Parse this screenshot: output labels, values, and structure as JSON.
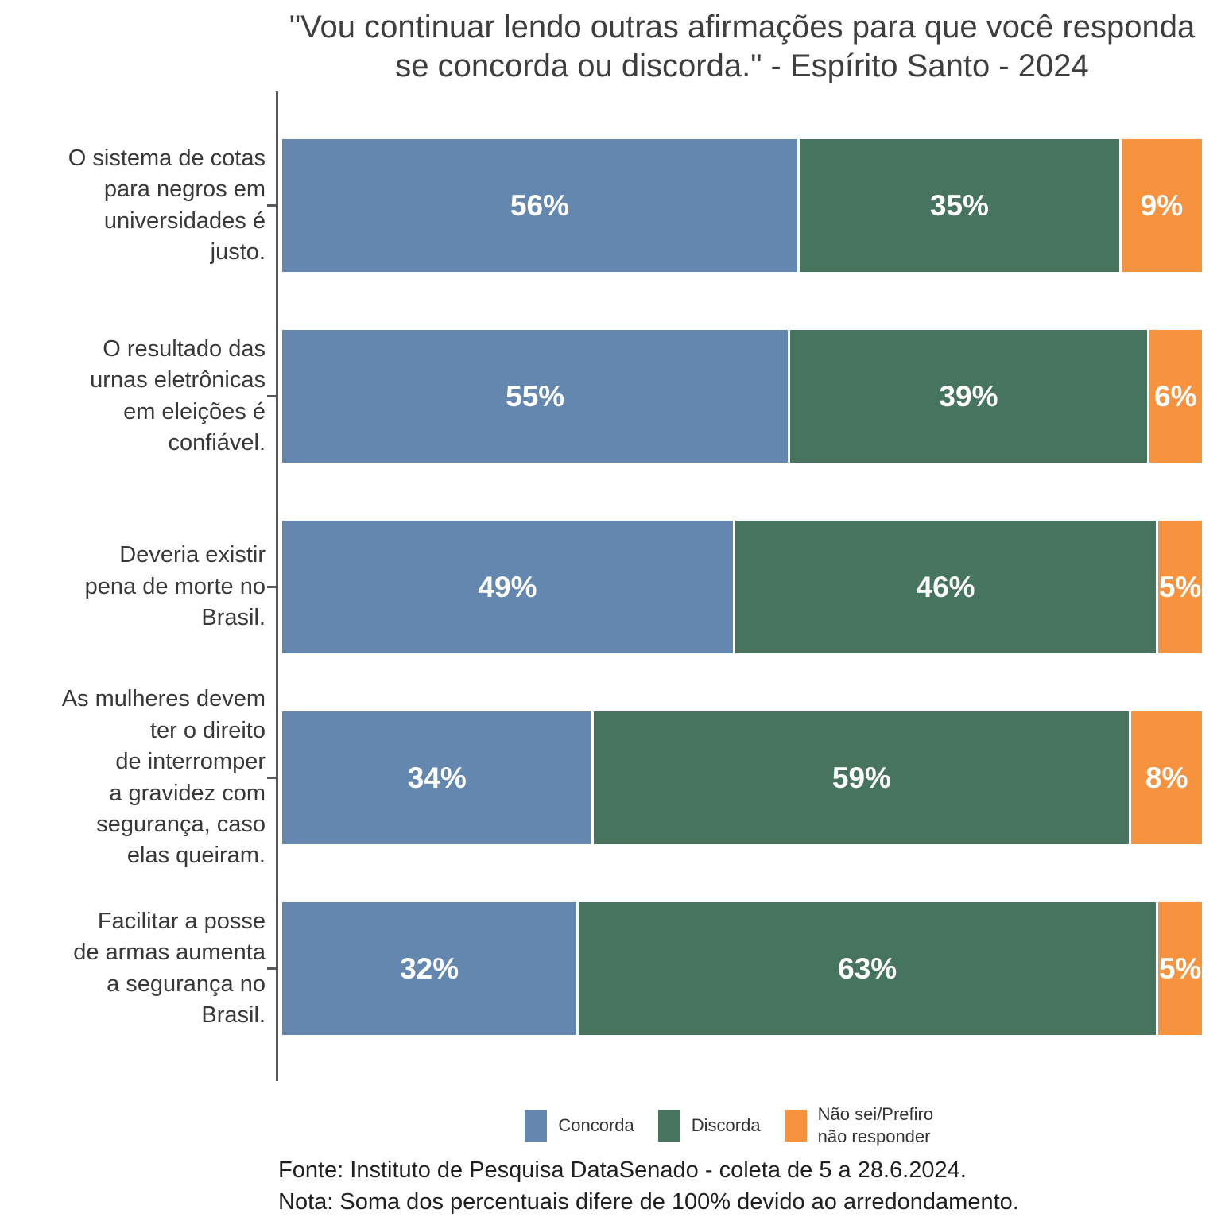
{
  "chart_data": {
    "type": "bar",
    "orientation": "horizontal",
    "stacked": true,
    "title": "\"Vou continuar lendo outras afirmações para que você responda se concorda ou discorda.\" - Espírito Santo - 2024",
    "categories": [
      "O sistema de cotas para negros em universidades é justo.",
      "O resultado das urnas eletrônicas em eleições é confiável.",
      "Deveria existir pena de morte no Brasil.",
      "As mulheres devem ter o direito de interromper a gravidez com segurança, caso elas queiram.",
      "Facilitar a posse de armas aumenta a segurança no Brasil."
    ],
    "category_label_lines": [
      [
        "O sistema de cotas",
        "para negros em",
        "universidades é",
        "justo."
      ],
      [
        "O resultado das",
        "urnas eletrônicas",
        "em eleições é",
        "confiável."
      ],
      [
        "Deveria existir",
        "pena de morte no",
        "Brasil."
      ],
      [
        "As mulheres devem",
        "ter o direito",
        "de interromper",
        "a gravidez com",
        "segurança, caso",
        "elas queiram."
      ],
      [
        "Facilitar a posse",
        "de armas aumenta",
        "a segurança no",
        "Brasil."
      ]
    ],
    "series": [
      {
        "name": "Concorda",
        "color": "#6387AE",
        "values": [
          56,
          55,
          49,
          34,
          32
        ]
      },
      {
        "name": "Discorda",
        "color": "#47745F",
        "values": [
          35,
          39,
          46,
          59,
          63
        ]
      },
      {
        "name": "Não sei/Prefiro não responder",
        "color": "#F7923E",
        "values": [
          9,
          6,
          5,
          8,
          5
        ]
      }
    ],
    "value_suffix": "%",
    "xlim": [
      0,
      100
    ],
    "legend_position": "bottom",
    "grid": false
  },
  "footer": {
    "source": "Fonte: Instituto de Pesquisa DataSenado - coleta de 5 a 28.6.2024.",
    "note": "Nota: Soma dos percentuais difere de 100% devido ao arredondamento."
  },
  "colors": {
    "axis": "#58585a",
    "title_text": "#3e3e3e",
    "category_text": "#383838",
    "bar_value_text": "#ffffff",
    "background": "#ffffff"
  }
}
